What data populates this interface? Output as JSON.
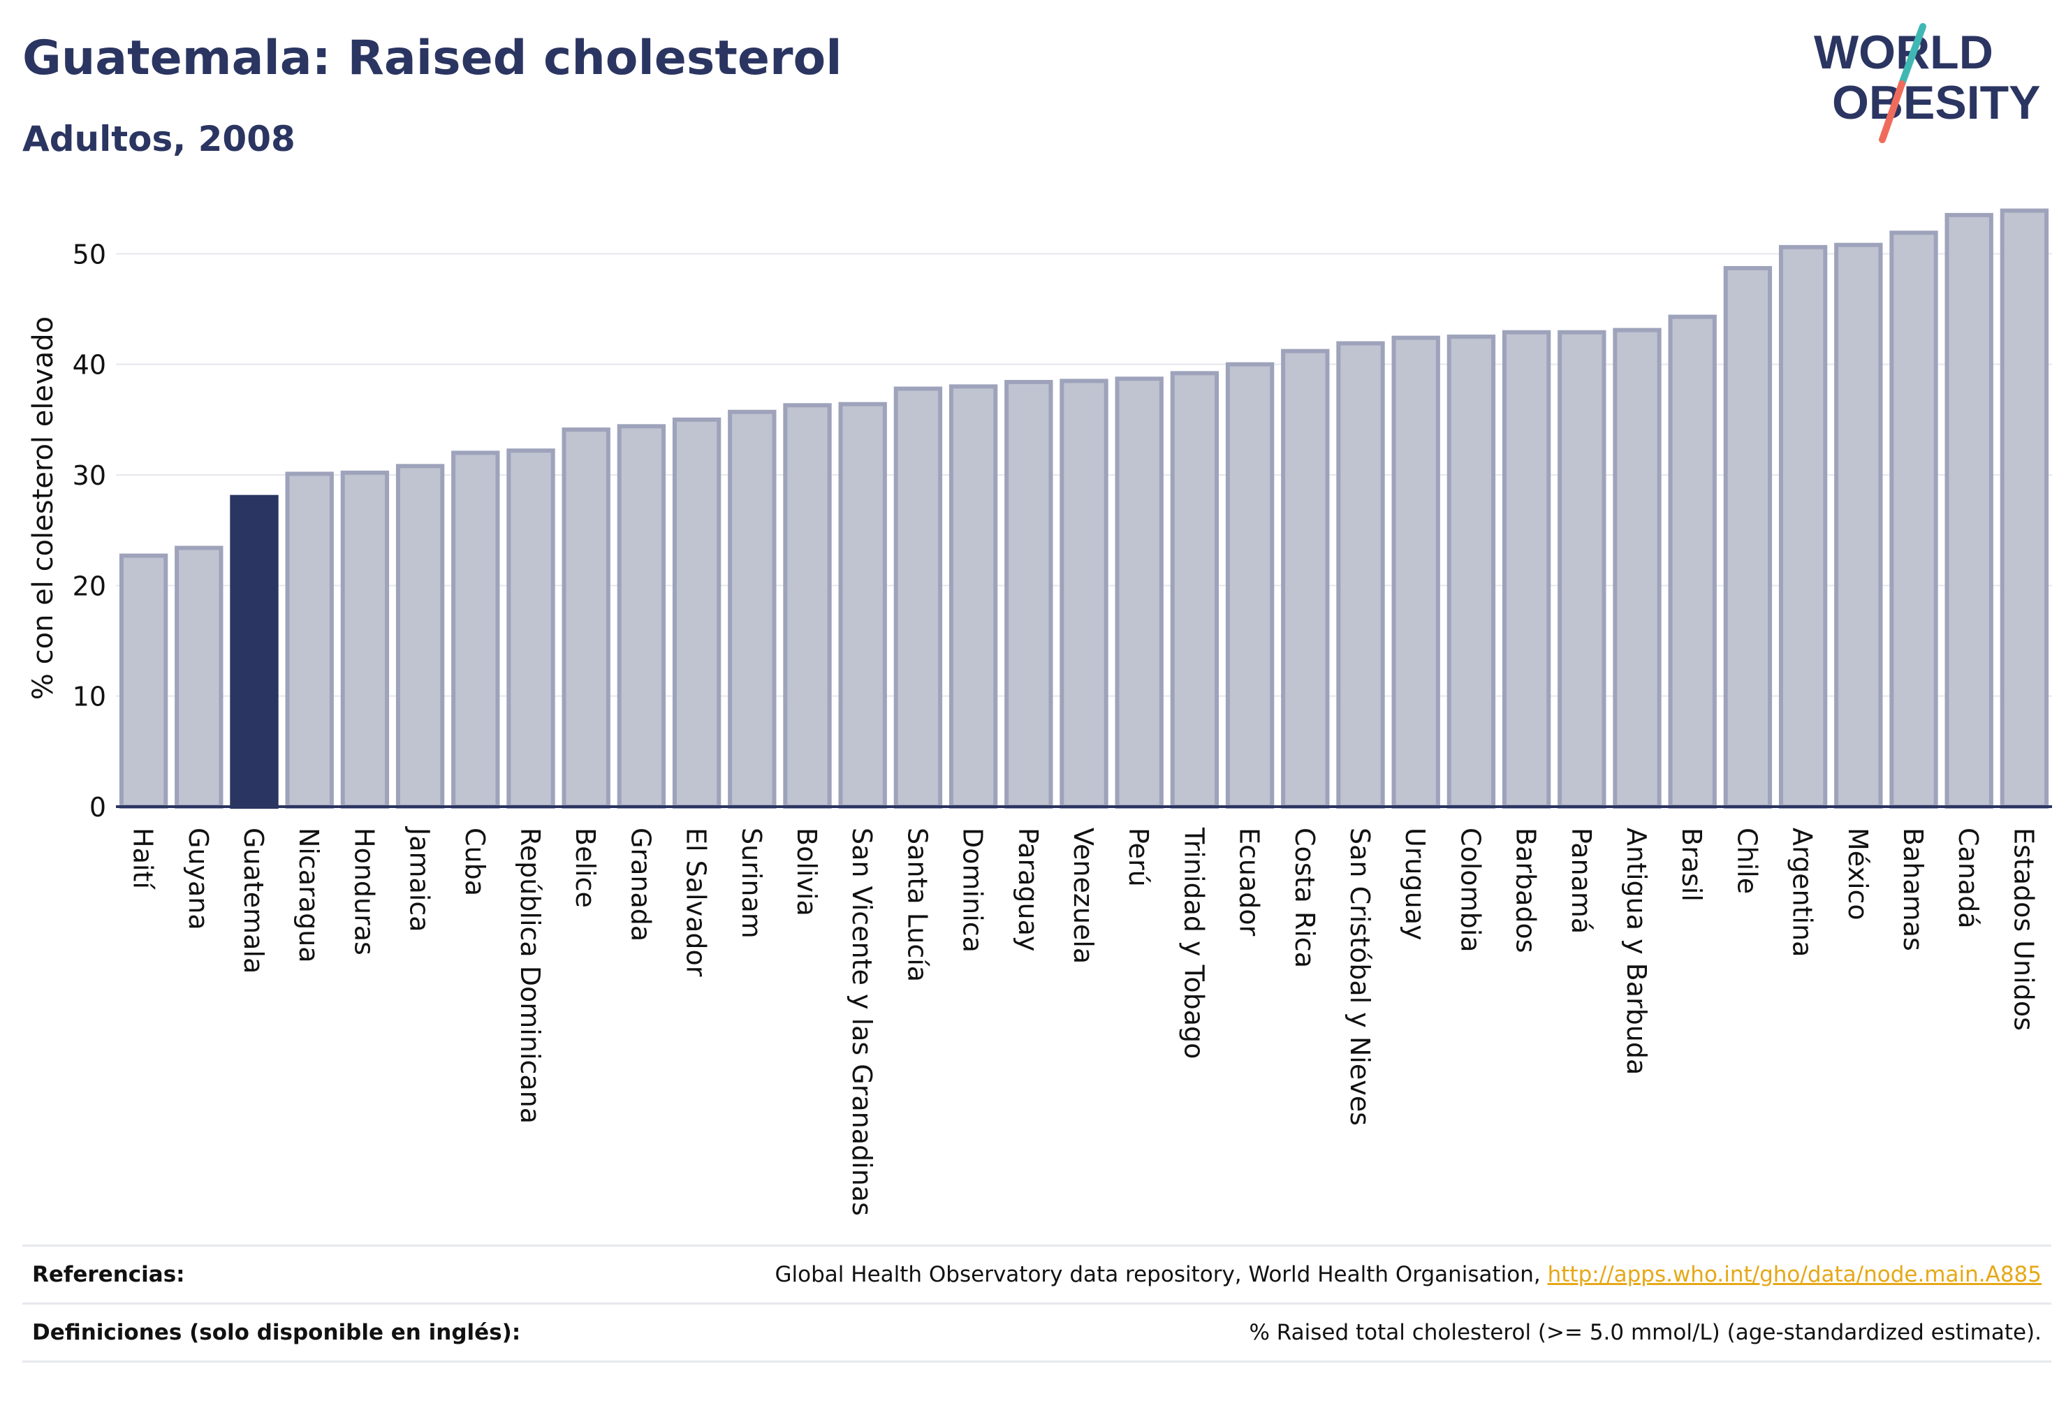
{
  "header": {
    "title": "Guatemala: Raised cholesterol",
    "subtitle": "Adultos, 2008"
  },
  "logo": {
    "line1": "WORLD",
    "line2": "OBESITY"
  },
  "colors": {
    "highlight": "#2b3561",
    "bar_fill": "#c0c3d0",
    "bar_stroke": "#9ea3bb",
    "text": "#2b3561",
    "link": "#e6a817",
    "logo_teal": "#3fb8b4",
    "logo_coral": "#ef6c5c"
  },
  "chart_data": {
    "type": "bar",
    "highlight": "Guatemala",
    "ylabel": "% con el colesterol elevado",
    "ylim": [
      0,
      54
    ],
    "yticks": [
      0,
      10,
      20,
      30,
      40,
      50
    ],
    "grid": true,
    "categories": [
      "Haití",
      "Guyana",
      "Guatemala",
      "Nicaragua",
      "Honduras",
      "Jamaica",
      "Cuba",
      "República Dominicana",
      "Belice",
      "Granada",
      "El Salvador",
      "Surinam",
      "Bolivia",
      "San Vicente y las Granadinas",
      "Santa Lucía",
      "Dominica",
      "Paraguay",
      "Venezuela",
      "Perú",
      "Trinidad y Tobago",
      "Ecuador",
      "Costa Rica",
      "San Cristóbal y Nieves",
      "Uruguay",
      "Colombia",
      "Barbados",
      "Panamá",
      "Antigua y Barbuda",
      "Brasil",
      "Chile",
      "Argentina",
      "México",
      "Bahamas",
      "Canadá",
      "Estados Unidos"
    ],
    "values": [
      22.7,
      23.4,
      28.0,
      30.1,
      30.2,
      30.8,
      32.0,
      32.2,
      34.1,
      34.4,
      35.0,
      35.7,
      36.3,
      36.4,
      37.8,
      38.0,
      38.4,
      38.5,
      38.7,
      39.2,
      40.0,
      41.2,
      41.9,
      42.4,
      42.5,
      42.9,
      42.9,
      43.1,
      44.3,
      48.7,
      50.6,
      50.8,
      51.9,
      53.5,
      53.9
    ]
  },
  "footer": {
    "references_label": "Referencias:",
    "references_text": "Global Health Observatory data repository, World Health Organisation, ",
    "references_link": "http://apps.who.int/gho/data/node.main.A885",
    "definitions_label": "Definiciones (solo disponible en inglés):",
    "definitions_text": "% Raised total cholesterol (>= 5.0 mmol/L) (age-standardized estimate)."
  }
}
